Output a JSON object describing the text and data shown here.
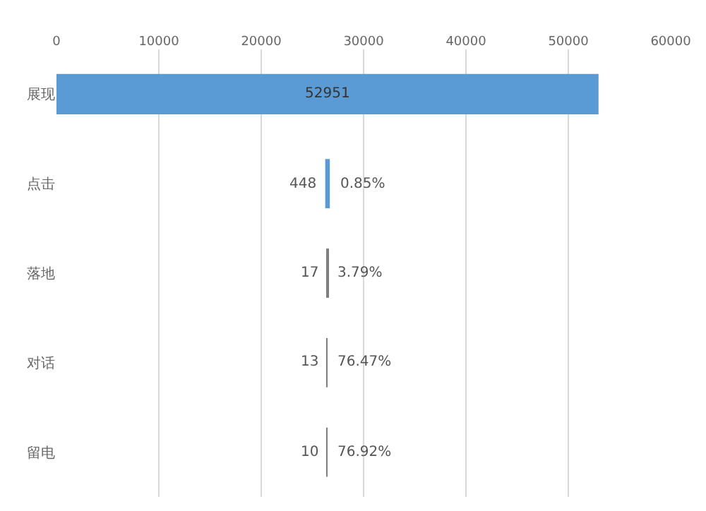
{
  "chart_data": {
    "type": "bar",
    "orientation": "horizontal",
    "categories": [
      "展现",
      "点击",
      "落地",
      "对话",
      "留电"
    ],
    "values": [
      52951,
      448,
      17,
      13,
      10
    ],
    "base": [
      0,
      26252,
      26467,
      26469,
      26471
    ],
    "value_labels": [
      "52951",
      "448",
      "17",
      "13",
      "10"
    ],
    "colors": [
      "#5b9bd5",
      "#5b9bd5",
      "#7f7f7f",
      "#7f7f7f",
      "#7f7f7f"
    ],
    "xlim": [
      0,
      60000
    ],
    "xticks": [
      0,
      10000,
      20000,
      30000,
      40000,
      50000,
      60000
    ],
    "grid": "x",
    "legend": false,
    "annotations": [
      "0.85%",
      "3.79%",
      "76.47%",
      "76.92%"
    ]
  }
}
